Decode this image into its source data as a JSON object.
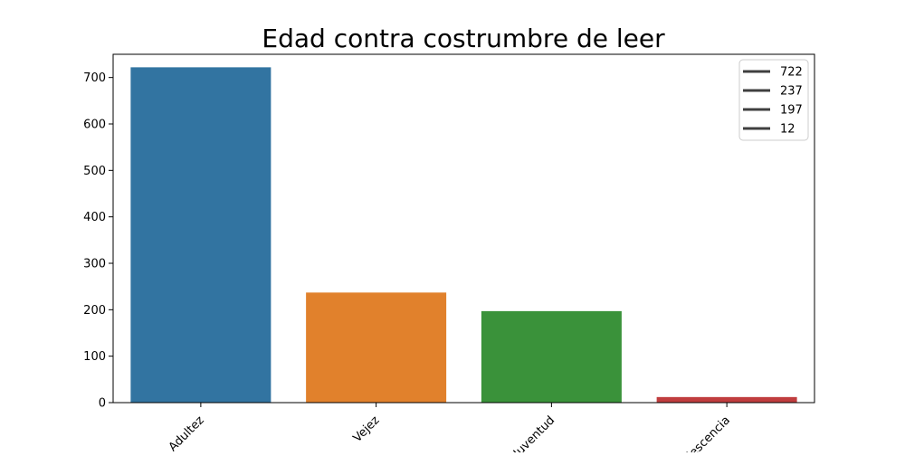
{
  "chart_data": {
    "type": "bar",
    "title": "Edad contra costrumbre de leer",
    "xlabel": "",
    "ylabel": "",
    "categories": [
      "Adultez",
      "Vejez",
      "Juventud",
      "Adolescencia"
    ],
    "values": [
      722,
      237,
      197,
      12
    ],
    "colors": [
      "#3274a1",
      "#e1812c",
      "#3a923a",
      "#c03d3e"
    ],
    "ylim": [
      0,
      750
    ],
    "yticks": [
      0,
      100,
      200,
      300,
      400,
      500,
      600,
      700
    ],
    "grid": false,
    "legend": {
      "placement": "top-right",
      "entries": [
        "722",
        "237",
        "197",
        "12"
      ],
      "line_color": "#3f3f3f"
    }
  }
}
